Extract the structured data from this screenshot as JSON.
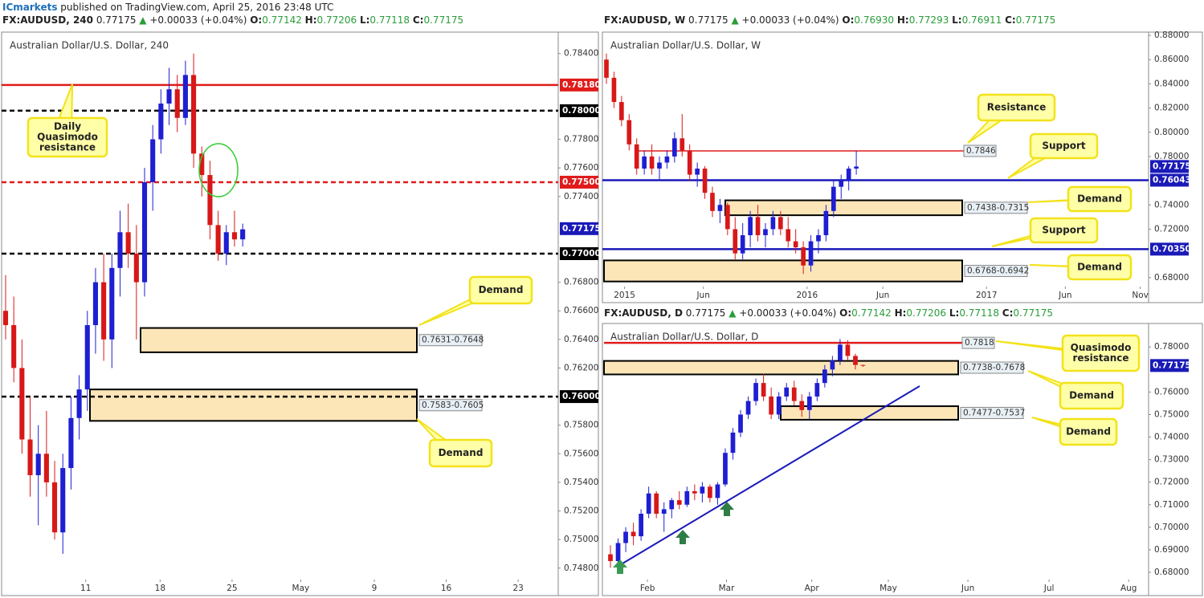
{
  "header": {
    "brand": "ICmarkets",
    "text": "published on TradingView.com, April 25, 2016 23:48 UTC"
  },
  "chart_data": [
    {
      "type": "candlestick",
      "ticker": "FX:AUDUSD, 240",
      "price": "0.77175",
      "arrow": "▲",
      "change": "+0.00033 (+0.04%)",
      "ohlc_labels": [
        {
          "label": "O:",
          "value": "0.77142"
        },
        {
          "label": "H:",
          "value": "0.77206"
        },
        {
          "label": "L:",
          "value": "0.77118"
        },
        {
          "label": "C:",
          "value": "0.77175"
        }
      ],
      "title": "Australian Dollar/U.S. Dollar, 240",
      "up_color": "#1e1ed2",
      "down_color": "#d81818",
      "ylim": [
        0.7472,
        0.7855
      ],
      "xlim": [
        -0.49,
        67.6
      ],
      "yticks": [
        {
          "value": 0.784,
          "label": "0.78400"
        },
        {
          "value": 0.778,
          "label": "0.77800"
        },
        {
          "value": 0.776,
          "label": "0.77600"
        },
        {
          "value": 0.774,
          "label": "0.77400"
        },
        {
          "value": 0.768,
          "label": "0.76800"
        },
        {
          "value": 0.766,
          "label": "0.76600"
        },
        {
          "value": 0.764,
          "label": "0.76400"
        },
        {
          "value": 0.762,
          "label": "0.76200"
        },
        {
          "value": 0.758,
          "label": "0.75800"
        },
        {
          "value": 0.756,
          "label": "0.75600"
        },
        {
          "value": 0.754,
          "label": "0.75400"
        },
        {
          "value": 0.752,
          "label": "0.75200"
        },
        {
          "value": 0.75,
          "label": "0.75000"
        },
        {
          "value": 0.748,
          "label": "0.74800"
        }
      ],
      "xticks": [
        {
          "value": 9.8,
          "label": "11"
        },
        {
          "value": 18.9,
          "label": "18"
        },
        {
          "value": 27.7,
          "label": "25"
        },
        {
          "value": 36.1,
          "label": "May"
        },
        {
          "value": 45.1,
          "label": "9"
        },
        {
          "value": 53.9,
          "label": "16"
        },
        {
          "value": 62.7,
          "label": "23"
        }
      ],
      "ohlc": [
        [
          0.766,
          0.7685,
          0.764,
          0.765
        ],
        [
          0.765,
          0.767,
          0.761,
          0.762
        ],
        [
          0.762,
          0.764,
          0.756,
          0.757
        ],
        [
          0.757,
          0.76,
          0.753,
          0.7545
        ],
        [
          0.7545,
          0.758,
          0.751,
          0.756
        ],
        [
          0.756,
          0.759,
          0.753,
          0.754
        ],
        [
          0.754,
          0.7555,
          0.75,
          0.7505
        ],
        [
          0.7505,
          0.756,
          0.749,
          0.755
        ],
        [
          0.755,
          0.76,
          0.7535,
          0.7585
        ],
        [
          0.7585,
          0.7615,
          0.757,
          0.7605
        ],
        [
          0.7605,
          0.766,
          0.759,
          0.765
        ],
        [
          0.765,
          0.769,
          0.763,
          0.768
        ],
        [
          0.768,
          0.77,
          0.7625,
          0.764
        ],
        [
          0.764,
          0.77,
          0.762,
          0.769
        ],
        [
          0.769,
          0.773,
          0.767,
          0.7715
        ],
        [
          0.7715,
          0.7735,
          0.769,
          0.77
        ],
        [
          0.77,
          0.772,
          0.764,
          0.768
        ],
        [
          0.768,
          0.776,
          0.767,
          0.775
        ],
        [
          0.775,
          0.779,
          0.773,
          0.778
        ],
        [
          0.778,
          0.7815,
          0.777,
          0.7805
        ],
        [
          0.7805,
          0.783,
          0.779,
          0.7815
        ],
        [
          0.7815,
          0.7825,
          0.7785,
          0.7795
        ],
        [
          0.7795,
          0.7835,
          0.779,
          0.7825
        ],
        [
          0.7825,
          0.784,
          0.776,
          0.777
        ],
        [
          0.777,
          0.7775,
          0.774,
          0.7755
        ],
        [
          0.7755,
          0.7765,
          0.771,
          0.772
        ],
        [
          0.772,
          0.773,
          0.7695,
          0.77
        ],
        [
          0.77,
          0.772,
          0.7692,
          0.7715
        ],
        [
          0.7715,
          0.773,
          0.7705,
          0.771
        ],
        [
          0.771,
          0.7721,
          0.7705,
          0.7717
        ]
      ],
      "levels": [
        {
          "value": 0.7818,
          "axis_label": "0.78180",
          "color": "#e01b1b",
          "style": "solid"
        },
        {
          "value": 0.78,
          "axis_label": "0.78000",
          "color": "#000000",
          "style": "dashed"
        },
        {
          "value": 0.775,
          "axis_label": "0.77500",
          "color": "#e01b1b",
          "style": "dashed"
        },
        {
          "value": 0.77,
          "axis_label": "0.77000",
          "color": "#000000",
          "style": "dashed"
        },
        {
          "value": 0.76,
          "axis_label": "0.76000",
          "color": "#000000",
          "style": "dashed"
        }
      ],
      "zones": [
        {
          "range": [
            0.7631,
            0.7648
          ],
          "label": "0.7631-0.7648"
        },
        {
          "range": [
            0.7583,
            0.7605
          ],
          "label": "0.7583-0.7605"
        }
      ],
      "last": {
        "value": 0.77175,
        "label": "0.77175"
      },
      "callouts": [
        {
          "lines": [
            "Daily",
            "Quasimodo",
            "resistance"
          ]
        },
        {
          "lines": [
            "Demand"
          ]
        },
        {
          "lines": [
            "Demand"
          ]
        }
      ]
    },
    {
      "type": "candlestick",
      "ticker": "FX:AUDUSD, W",
      "price": "0.77175",
      "arrow": "▲",
      "change": "+0.00033 (+0.04%)",
      "ohlc_labels": [
        {
          "label": "O:",
          "value": "0.76930"
        },
        {
          "label": "H:",
          "value": "0.77293"
        },
        {
          "label": "L:",
          "value": "0.76911"
        },
        {
          "label": "C:",
          "value": "0.77175"
        }
      ],
      "title": "Australian Dollar/U.S. Dollar, W",
      "up_color": "#1e1ed2",
      "down_color": "#d81818",
      "ylim": [
        0.6726,
        0.8827
      ],
      "xlim": [
        -0.53,
        71.6
      ],
      "yticks": [
        {
          "value": 0.88,
          "label": "0.88000"
        },
        {
          "value": 0.86,
          "label": "0.86000"
        },
        {
          "value": 0.84,
          "label": "0.84000"
        },
        {
          "value": 0.82,
          "label": "0.82000"
        },
        {
          "value": 0.8,
          "label": "0.80000"
        },
        {
          "value": 0.78,
          "label": "0.78000"
        },
        {
          "value": 0.74,
          "label": "0.74000"
        },
        {
          "value": 0.72,
          "label": "0.72000"
        },
        {
          "value": 0.68,
          "label": "0.68000"
        }
      ],
      "xticks": [
        {
          "value": 2.4,
          "label": "2015"
        },
        {
          "value": 12.8,
          "label": "Jun"
        },
        {
          "value": 26.5,
          "label": "2016"
        },
        {
          "value": 36.5,
          "label": "Jun"
        },
        {
          "value": 50.2,
          "label": "2017"
        },
        {
          "value": 60.6,
          "label": "Jun"
        },
        {
          "value": 70.5,
          "label": "Nov"
        }
      ],
      "ohlc": [
        [
          0.86,
          0.865,
          0.84,
          0.845
        ],
        [
          0.845,
          0.85,
          0.82,
          0.825
        ],
        [
          0.825,
          0.83,
          0.805,
          0.81
        ],
        [
          0.81,
          0.815,
          0.785,
          0.79
        ],
        [
          0.79,
          0.795,
          0.765,
          0.77
        ],
        [
          0.77,
          0.785,
          0.765,
          0.78
        ],
        [
          0.78,
          0.79,
          0.765,
          0.77
        ],
        [
          0.77,
          0.78,
          0.76,
          0.775
        ],
        [
          0.775,
          0.785,
          0.77,
          0.78
        ],
        [
          0.78,
          0.8,
          0.775,
          0.795
        ],
        [
          0.795,
          0.815,
          0.78,
          0.785
        ],
        [
          0.785,
          0.79,
          0.76,
          0.765
        ],
        [
          0.765,
          0.775,
          0.755,
          0.77
        ],
        [
          0.77,
          0.772,
          0.745,
          0.75
        ],
        [
          0.75,
          0.755,
          0.73,
          0.735
        ],
        [
          0.735,
          0.745,
          0.725,
          0.74
        ],
        [
          0.74,
          0.742,
          0.715,
          0.72
        ],
        [
          0.72,
          0.73,
          0.695,
          0.7
        ],
        [
          0.7,
          0.725,
          0.695,
          0.715
        ],
        [
          0.715,
          0.735,
          0.705,
          0.73
        ],
        [
          0.73,
          0.74,
          0.71,
          0.715
        ],
        [
          0.715,
          0.725,
          0.705,
          0.72
        ],
        [
          0.72,
          0.735,
          0.715,
          0.73
        ],
        [
          0.73,
          0.735,
          0.715,
          0.72
        ],
        [
          0.72,
          0.73,
          0.705,
          0.71
        ],
        [
          0.71,
          0.72,
          0.7,
          0.705
        ],
        [
          0.705,
          0.71,
          0.683,
          0.69
        ],
        [
          0.69,
          0.715,
          0.685,
          0.71
        ],
        [
          0.71,
          0.72,
          0.7,
          0.715
        ],
        [
          0.715,
          0.74,
          0.71,
          0.735
        ],
        [
          0.735,
          0.76,
          0.73,
          0.755
        ],
        [
          0.755,
          0.765,
          0.745,
          0.76
        ],
        [
          0.76,
          0.772,
          0.752,
          0.77
        ],
        [
          0.77,
          0.7846,
          0.765,
          0.7717
        ]
      ],
      "levels": [
        {
          "value": 0.7846,
          "line_label": "0.7846",
          "color": "#e01b1b",
          "style": "thin"
        },
        {
          "value": 0.76043,
          "axis_label": "0.76043",
          "color": "#1a1ab8",
          "style": "solid"
        },
        {
          "value": 0.7035,
          "axis_label": "0.70350",
          "color": "#1a1ab8",
          "style": "solid"
        }
      ],
      "zones": [
        {
          "range": [
            0.7438,
            0.7315
          ],
          "label": "0.7438-0.7315"
        },
        {
          "range": [
            0.6768,
            0.6942
          ],
          "label": "0.6768-0.6942"
        }
      ],
      "last": {
        "value": 0.77175,
        "label": "0.77175"
      },
      "callouts": [
        {
          "lines": [
            "Resistance"
          ]
        },
        {
          "lines": [
            "Support"
          ]
        },
        {
          "lines": [
            "Demand"
          ]
        },
        {
          "lines": [
            "Support"
          ]
        },
        {
          "lines": [
            "Demand"
          ]
        }
      ]
    },
    {
      "type": "candlestick",
      "ticker": "FX:AUDUSD, D",
      "price": "0.77175",
      "arrow": "▲",
      "change": "+0.00033 (+0.04%)",
      "ohlc_labels": [
        {
          "label": "O:",
          "value": "0.77142"
        },
        {
          "label": "H:",
          "value": "0.77206"
        },
        {
          "label": "L:",
          "value": "0.77118"
        },
        {
          "label": "C:",
          "value": "0.77175"
        }
      ],
      "title": "Australian Dollar/U.S. Dollar, D",
      "up_color": "#1e1ed2",
      "down_color": "#d81818",
      "ylim": [
        0.6768,
        0.7904
      ],
      "xlim": [
        -1.05,
        70.3
      ],
      "yticks": [
        {
          "value": 0.78,
          "label": "0.78000"
        },
        {
          "value": 0.76,
          "label": "0.76000"
        },
        {
          "value": 0.75,
          "label": "0.75000"
        },
        {
          "value": 0.74,
          "label": "0.74000"
        },
        {
          "value": 0.73,
          "label": "0.73000"
        },
        {
          "value": 0.72,
          "label": "0.72000"
        },
        {
          "value": 0.71,
          "label": "0.71000"
        },
        {
          "value": 0.7,
          "label": "0.70000"
        },
        {
          "value": 0.69,
          "label": "0.69000"
        },
        {
          "value": 0.68,
          "label": "0.68000"
        }
      ],
      "xticks": [
        {
          "value": 4.84,
          "label": "Feb"
        },
        {
          "value": 15.16,
          "label": "Mar"
        },
        {
          "value": 26.3,
          "label": "Apr"
        },
        {
          "value": 36.3,
          "label": "May"
        },
        {
          "value": 46.7,
          "label": "Jun"
        },
        {
          "value": 57.3,
          "label": "Jul"
        },
        {
          "value": 67.7,
          "label": "Aug"
        }
      ],
      "ohlc": [
        [
          0.688,
          0.692,
          0.682,
          0.685
        ],
        [
          0.685,
          0.695,
          0.683,
          0.693
        ],
        [
          0.693,
          0.7,
          0.689,
          0.698
        ],
        [
          0.698,
          0.702,
          0.692,
          0.696
        ],
        [
          0.696,
          0.708,
          0.694,
          0.706
        ],
        [
          0.706,
          0.718,
          0.704,
          0.715
        ],
        [
          0.715,
          0.716,
          0.704,
          0.706
        ],
        [
          0.706,
          0.711,
          0.698,
          0.708
        ],
        [
          0.708,
          0.713,
          0.704,
          0.712
        ],
        [
          0.712,
          0.716,
          0.708,
          0.71
        ],
        [
          0.71,
          0.718,
          0.709,
          0.716
        ],
        [
          0.716,
          0.719,
          0.712,
          0.715
        ],
        [
          0.715,
          0.72,
          0.711,
          0.718
        ],
        [
          0.718,
          0.719,
          0.711,
          0.713
        ],
        [
          0.713,
          0.72,
          0.71,
          0.719
        ],
        [
          0.719,
          0.735,
          0.718,
          0.733
        ],
        [
          0.733,
          0.744,
          0.73,
          0.742
        ],
        [
          0.742,
          0.752,
          0.74,
          0.75
        ],
        [
          0.75,
          0.758,
          0.748,
          0.756
        ],
        [
          0.756,
          0.766,
          0.754,
          0.764
        ],
        [
          0.764,
          0.768,
          0.756,
          0.758
        ],
        [
          0.758,
          0.762,
          0.748,
          0.75
        ],
        [
          0.75,
          0.76,
          0.748,
          0.758
        ],
        [
          0.758,
          0.764,
          0.756,
          0.762
        ],
        [
          0.762,
          0.765,
          0.754,
          0.756
        ],
        [
          0.756,
          0.759,
          0.749,
          0.752
        ],
        [
          0.752,
          0.76,
          0.748,
          0.758
        ],
        [
          0.758,
          0.766,
          0.756,
          0.764
        ],
        [
          0.764,
          0.772,
          0.762,
          0.77
        ],
        [
          0.77,
          0.776,
          0.767,
          0.774
        ],
        [
          0.774,
          0.7835,
          0.772,
          0.781
        ],
        [
          0.781,
          0.783,
          0.774,
          0.776
        ],
        [
          0.776,
          0.777,
          0.77,
          0.772
        ],
        [
          0.772,
          0.7721,
          0.7712,
          0.7717
        ]
      ],
      "levels": [
        {
          "value": 0.7818,
          "line_label": "0.7818",
          "color": "#e01b1b",
          "style": "solid"
        }
      ],
      "zones": [
        {
          "range": [
            0.7738,
            0.7678
          ],
          "label": "0.7738-0.7678"
        },
        {
          "range": [
            0.7477,
            0.7537
          ],
          "label": "0.7477-0.7537"
        }
      ],
      "last": {
        "value": 0.77175,
        "label": "0.77175"
      },
      "callouts": [
        {
          "lines": [
            "Quasimodo",
            "resistance"
          ]
        },
        {
          "lines": [
            "Demand"
          ]
        },
        {
          "lines": [
            "Demand"
          ]
        }
      ]
    }
  ]
}
